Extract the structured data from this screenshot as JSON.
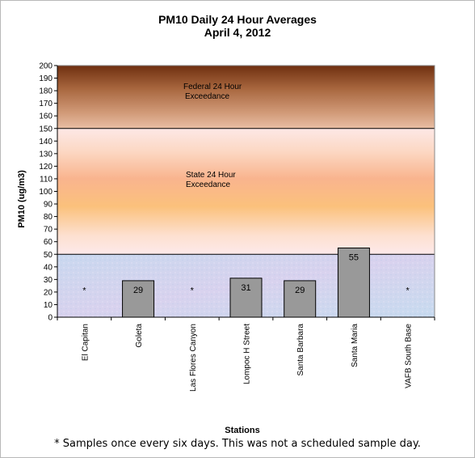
{
  "chart_data": {
    "type": "bar",
    "title": "PM10 Daily 24 Hour Averages",
    "subtitle": "April 4, 2012",
    "xlabel": "Stations",
    "ylabel": "PM10 (ug/m3)",
    "ylim": [
      0,
      200
    ],
    "ytick_step": 10,
    "categories": [
      "El Capitan",
      "Goleta",
      "Las Flores Canyon",
      "Lompoc H Street",
      "Santa Barbara",
      "Santa Maria",
      "VAFB South Base"
    ],
    "values": [
      null,
      29,
      null,
      31,
      29,
      55,
      null
    ],
    "data_labels": [
      "*",
      "29",
      "*",
      "31",
      "29",
      "55",
      "*"
    ],
    "thresholds": [
      {
        "value": 50,
        "label": ""
      },
      {
        "value": 150,
        "label": ""
      }
    ],
    "bands": [
      {
        "from": 0,
        "to": 50,
        "label": ""
      },
      {
        "from": 50,
        "to": 150,
        "label": "State 24 Hour Exceedance"
      },
      {
        "from": 150,
        "to": 200,
        "label": "Federal 24 Hour Exceedance"
      }
    ],
    "band_label_lines": {
      "federal": [
        "Federal 24 Hour",
        "Exceedance"
      ],
      "state": [
        "State 24 Hour",
        "Exceedance"
      ]
    },
    "bar_color": "#999999",
    "grid": false,
    "legend": "none"
  },
  "footnote": "*  Samples once every six days.  This was not a scheduled sample day."
}
